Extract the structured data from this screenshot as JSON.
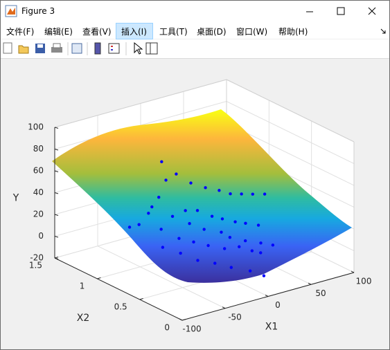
{
  "window": {
    "title": "Figure 3"
  },
  "menu": [
    "文件(F)",
    "编辑(E)",
    "查看(V)",
    "插入(I)",
    "工具(T)",
    "桌面(D)",
    "窗口(W)",
    "帮助(H)"
  ],
  "chart_data": {
    "type": "scatter3d",
    "xlabel": "X1",
    "x2label": "X2",
    "ylabel": "Y",
    "color": "#0000ff",
    "grid": true,
    "xlim": [
      -100,
      100
    ],
    "xticks": [
      -100,
      -50,
      0,
      50,
      100
    ],
    "x2lim": [
      0,
      1.5
    ],
    "x2ticks": [
      0,
      0.5,
      1,
      1.5
    ],
    "ylim": [
      -20,
      100
    ],
    "yticks": [
      -20,
      0,
      20,
      40,
      60,
      80,
      100
    ],
    "x": [
      -25,
      -20,
      -8,
      9,
      26,
      42,
      55,
      68,
      81,
      95,
      -58,
      -66,
      -70,
      -81,
      -92,
      -42,
      -27,
      -13,
      4,
      16,
      31,
      43,
      58,
      -75,
      -42,
      -25,
      -5,
      5,
      23,
      41,
      55,
      -93,
      -74,
      -57,
      -40,
      -21,
      -4,
      11,
      21,
      -92,
      -72,
      -52,
      -33,
      -11,
      5
    ],
    "x2": [
      1,
      1,
      1,
      1,
      1,
      1,
      1,
      1,
      1,
      1,
      0.7,
      0.7,
      0.7,
      0.7,
      0.7,
      0.7,
      0.7,
      0.7,
      0.7,
      0.7,
      0.7,
      0.7,
      0.7,
      0.5,
      0.5,
      0.5,
      0.5,
      0.5,
      0.5,
      0.5,
      0.5,
      0.3,
      0.3,
      0.3,
      0.3,
      0.3,
      0.3,
      0.3,
      0.3,
      0.1,
      0.1,
      0.1,
      0.1,
      0.1,
      0.1
    ],
    "values": [
      71,
      53,
      56,
      44,
      36,
      30,
      24,
      21,
      18,
      15,
      57,
      50,
      45,
      37,
      37,
      36,
      38,
      35,
      26,
      21,
      15,
      11,
      6,
      39,
      37,
      28,
      21,
      14,
      7,
      1,
      -4,
      34,
      38,
      31,
      24,
      17,
      15,
      8,
      4,
      36,
      25,
      18,
      10,
      2,
      -6
    ]
  }
}
